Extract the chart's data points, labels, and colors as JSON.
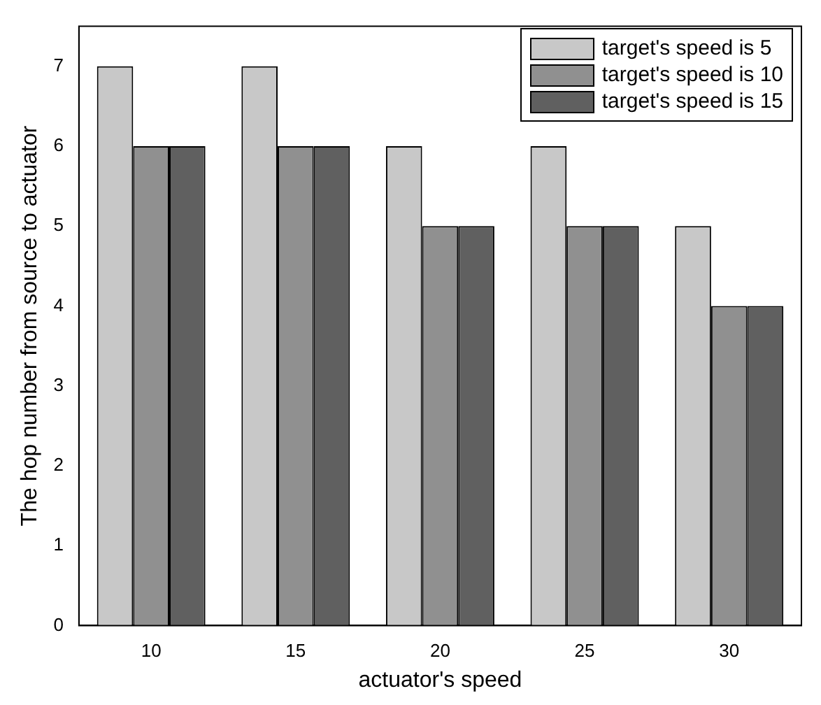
{
  "chart_data": {
    "type": "bar",
    "xlabel": "actuator's speed",
    "ylabel": "The hop number from source to actuator",
    "categories": [
      "10",
      "15",
      "20",
      "25",
      "30"
    ],
    "series": [
      {
        "name": "target's speed is 5",
        "color": "#c8c8c8",
        "values": [
          7,
          7,
          6,
          6,
          5
        ]
      },
      {
        "name": "target's speed is 10",
        "color": "#909090",
        "values": [
          6,
          6,
          5,
          5,
          4
        ]
      },
      {
        "name": "target's speed is 15",
        "color": "#606060",
        "values": [
          6,
          6,
          5,
          5,
          4
        ]
      }
    ],
    "ylim": [
      0,
      7.5
    ],
    "yticks": [
      0,
      1,
      2,
      3,
      4,
      5,
      6,
      7
    ],
    "grid": false,
    "legend": "top right"
  }
}
